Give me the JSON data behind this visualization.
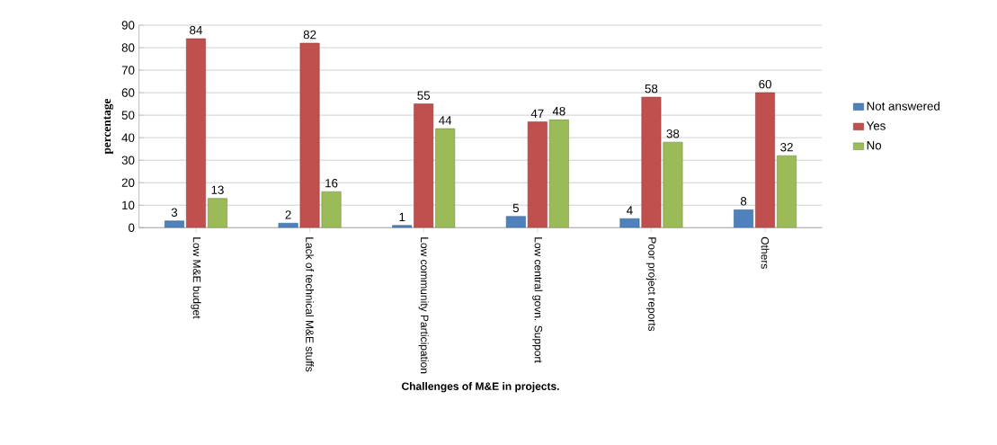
{
  "chart_data": {
    "type": "bar",
    "xlabel": "Challenges of  M&E in projects.",
    "ylabel": "percentage",
    "categories": [
      "Low M&E budget",
      "Lack of technical M&E stuffs",
      "Low community Participation",
      "Low central govn. Support",
      "Poor project reports",
      "Others"
    ],
    "series": [
      {
        "name": "Not answered",
        "color": "#4f81bd",
        "values": [
          3,
          2,
          1,
          5,
          4,
          8
        ]
      },
      {
        "name": "Yes",
        "color": "#c0504d",
        "values": [
          84,
          82,
          55,
          47,
          58,
          60
        ]
      },
      {
        "name": "No",
        "color": "#9bbb59",
        "values": [
          13,
          16,
          44,
          48,
          38,
          32
        ]
      }
    ],
    "ylim": [
      0,
      90
    ],
    "yticks": [
      0,
      10,
      20,
      30,
      40,
      50,
      60,
      70,
      80,
      90
    ],
    "grid": "y",
    "legend": "right",
    "data_labels": true
  }
}
